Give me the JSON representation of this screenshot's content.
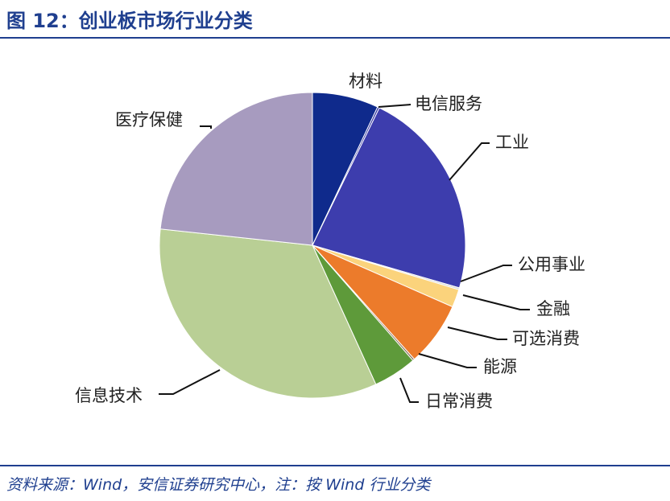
{
  "figure": {
    "title": "图 12：创业板市场行业分类",
    "source": "资料来源：Wind，安信证券研究中心，注：按 Wind 行业分类"
  },
  "chart_data": {
    "type": "pie",
    "title": "",
    "start_angle_deg": 0,
    "direction": "clockwise",
    "legend": "none",
    "slices": [
      {
        "label": "材料",
        "value": 7.0,
        "color": "#0f2a8c"
      },
      {
        "label": "电信服务",
        "value": 0.2,
        "color": "#2c2f9e"
      },
      {
        "label": "工业",
        "value": 22.3,
        "color": "#3d3dad"
      },
      {
        "label": "公用事业",
        "value": 0.2,
        "color": "#d8d8d8"
      },
      {
        "label": "金融",
        "value": 1.9,
        "color": "#fbd37c"
      },
      {
        "label": "可选消费",
        "value": 6.8,
        "color": "#ec7b2b"
      },
      {
        "label": "能源",
        "value": 0.2,
        "color": "#8b6f5a"
      },
      {
        "label": "日常消费",
        "value": 4.6,
        "color": "#5e9a3a"
      },
      {
        "label": "信息技术",
        "value": 33.5,
        "color": "#b9cf95"
      },
      {
        "label": "医疗保健",
        "value": 23.3,
        "color": "#a79bbf"
      }
    ]
  }
}
